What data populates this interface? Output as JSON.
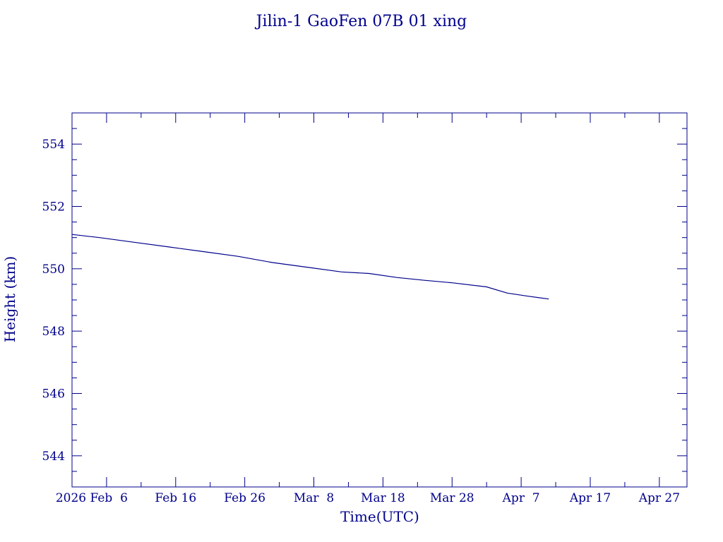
{
  "chart_data": {
    "type": "line",
    "title": "Jilin-1 GaoFen 07B 01 xing",
    "xlabel": "Time(UTC)",
    "ylabel": "Height (km)",
    "ylim": [
      543,
      555
    ],
    "xlim": [
      "2026-02-01",
      "2026-05-01"
    ],
    "grid": false,
    "color": "#00008b",
    "x_ticks": [
      {
        "date": "2026-02-06",
        "label": "2026 Feb  6"
      },
      {
        "date": "2026-02-16",
        "label": "Feb 16"
      },
      {
        "date": "2026-02-26",
        "label": "Feb 26"
      },
      {
        "date": "2026-03-08",
        "label": "Mar  8"
      },
      {
        "date": "2026-03-18",
        "label": "Mar 18"
      },
      {
        "date": "2026-03-28",
        "label": "Mar 28"
      },
      {
        "date": "2026-04-07",
        "label": "Apr  7"
      },
      {
        "date": "2026-04-17",
        "label": "Apr 17"
      },
      {
        "date": "2026-04-27",
        "label": "Apr 27"
      }
    ],
    "y_ticks": [
      544,
      546,
      548,
      550,
      552,
      554
    ],
    "series": [
      {
        "x": [
          "2026-02-01",
          "2026-02-05",
          "2026-02-10",
          "2026-02-15",
          "2026-02-20",
          "2026-02-25",
          "2026-03-02",
          "2026-03-07",
          "2026-03-12",
          "2026-03-16",
          "2026-03-20",
          "2026-03-24",
          "2026-03-28",
          "2026-04-02",
          "2026-04-05",
          "2026-04-08",
          "2026-04-11"
        ],
        "y": [
          551.1,
          551.0,
          550.85,
          550.7,
          550.55,
          550.4,
          550.2,
          550.05,
          549.9,
          549.85,
          549.72,
          549.63,
          549.55,
          549.42,
          549.22,
          549.12,
          549.03
        ]
      }
    ]
  }
}
